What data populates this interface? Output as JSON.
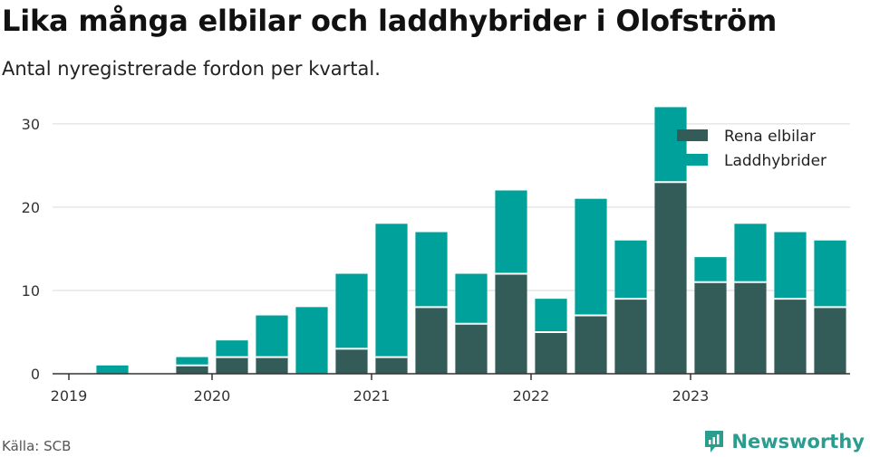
{
  "header": {
    "title": "Lika många elbilar och laddhybrider i Olofström",
    "subtitle": "Antal nyregistrerade fordon per kvartal."
  },
  "footer": {
    "source": "Källa: SCB",
    "brand": "Newsworthy",
    "brand_icon": "newsworthy-logo-icon"
  },
  "colors": {
    "electric": "#335c58",
    "hybrid": "#00a19a",
    "axis": "#333333",
    "grid": "#d9d9d9",
    "brand": "#2a9d8f"
  },
  "chart_data": {
    "type": "bar",
    "stacked": true,
    "categories": [
      "2019 Q1",
      "2019 Q2",
      "2019 Q3",
      "2019 Q4",
      "2020 Q1",
      "2020 Q2",
      "2020 Q3",
      "2020 Q4",
      "2021 Q1",
      "2021 Q2",
      "2021 Q3",
      "2021 Q4",
      "2022 Q1",
      "2022 Q2",
      "2022 Q3",
      "2022 Q4",
      "2023 Q1",
      "2023 Q2",
      "2023 Q3",
      "2023 Q4"
    ],
    "x_tick_labels": [
      "2019",
      "2020",
      "2021",
      "2022",
      "2023"
    ],
    "x_tick_quarter_index": [
      0,
      4,
      8,
      12,
      16
    ],
    "series": [
      {
        "name": "Rena elbilar",
        "values": [
          0,
          0,
          0,
          1,
          2,
          2,
          0,
          3,
          2,
          8,
          6,
          12,
          5,
          7,
          9,
          23,
          11,
          11,
          9,
          8
        ]
      },
      {
        "name": "Laddhybrider",
        "values": [
          0,
          1,
          0,
          1,
          2,
          5,
          8,
          9,
          16,
          9,
          6,
          10,
          4,
          14,
          7,
          9,
          3,
          7,
          8,
          8
        ]
      }
    ],
    "y_ticks": [
      0,
      10,
      20,
      30
    ],
    "ylim": [
      0,
      34
    ],
    "legend": "top-right",
    "grid": true
  }
}
